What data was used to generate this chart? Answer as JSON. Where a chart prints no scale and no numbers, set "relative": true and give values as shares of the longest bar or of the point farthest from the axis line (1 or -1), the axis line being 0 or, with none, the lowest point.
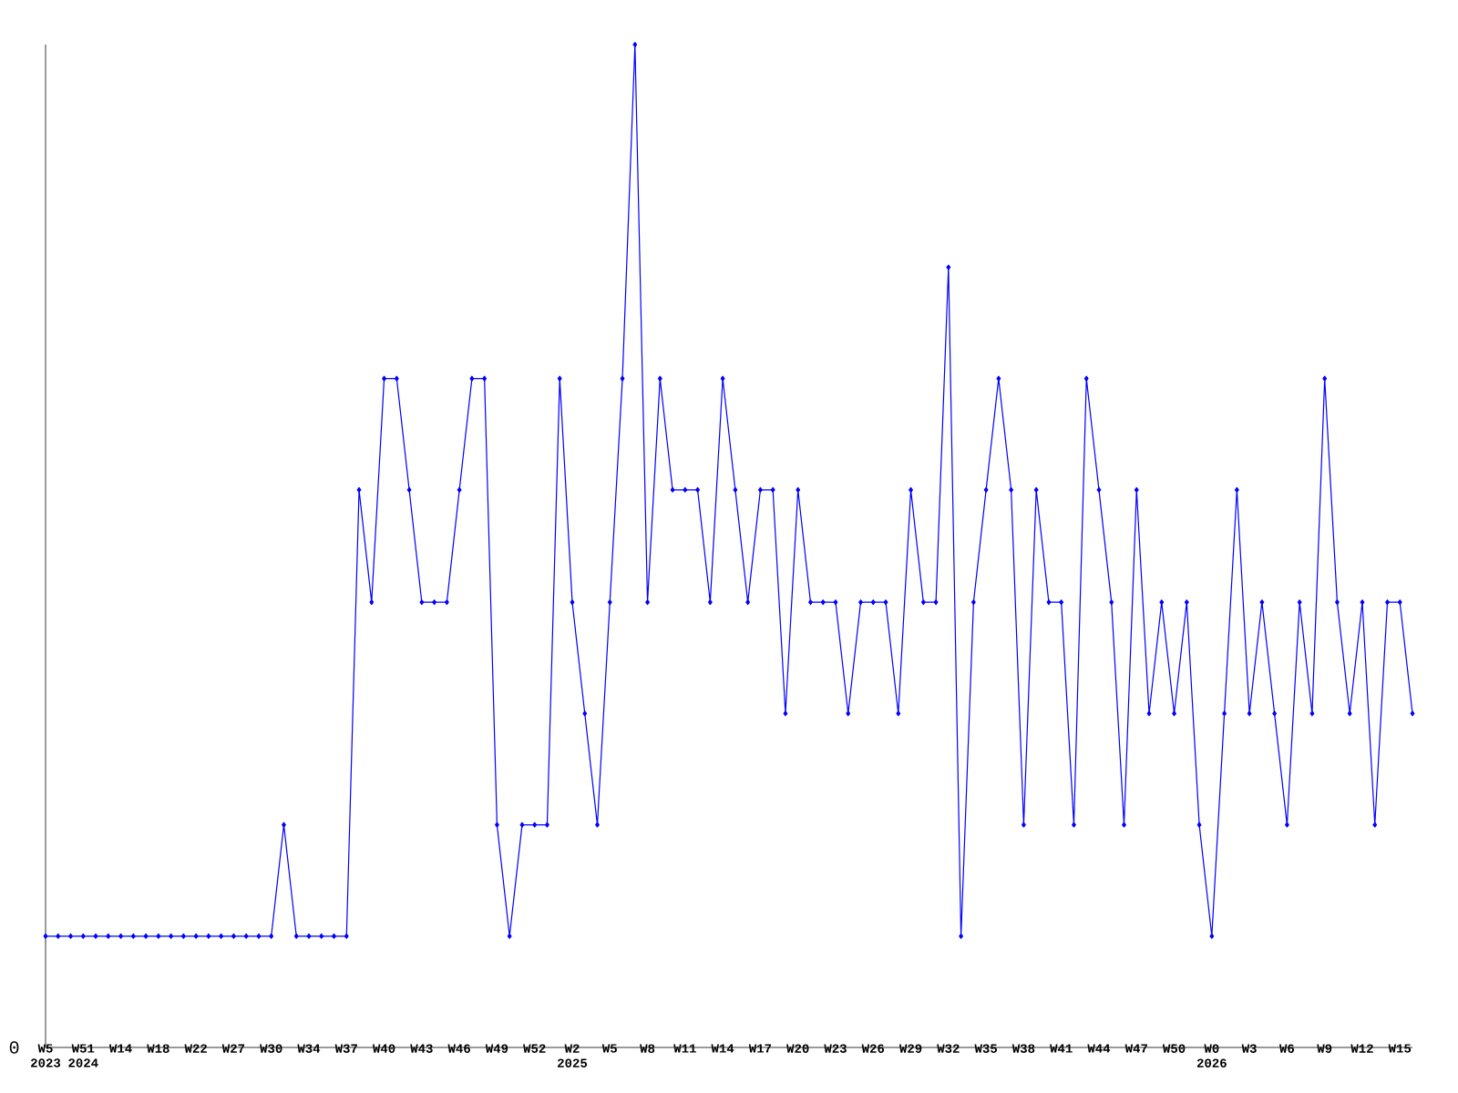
{
  "chart_data": {
    "type": "line",
    "relative": true,
    "color": "#0000ff",
    "marker": "diamond",
    "line_style": "solid",
    "grid": false,
    "categories": [
      "W5 2023",
      null,
      null,
      "W51 2024",
      null,
      null,
      "W14",
      null,
      null,
      "W18",
      null,
      null,
      "W22",
      null,
      null,
      "W27",
      null,
      null,
      "W30",
      null,
      null,
      "W34",
      null,
      null,
      "W37",
      null,
      null,
      "W40",
      null,
      null,
      "W43",
      null,
      null,
      "W46",
      null,
      null,
      "W49",
      null,
      null,
      "W52",
      null,
      null,
      "W2 2025",
      null,
      null,
      "W5",
      null,
      null,
      "W8",
      null,
      null,
      "W11",
      null,
      null,
      "W14",
      null,
      null,
      "W17",
      null,
      null,
      "W20",
      null,
      null,
      "W23",
      null,
      null,
      "W26",
      null,
      null,
      "W29",
      null,
      null,
      "W32",
      null,
      null,
      "W35",
      null,
      null,
      "W38",
      null,
      null,
      "W41",
      null,
      null,
      "W44",
      null,
      null,
      "W47",
      null,
      null,
      "W50",
      null,
      null,
      "W0 2026",
      null,
      null,
      "W3",
      null,
      null,
      "W6",
      null,
      null,
      "W9",
      null,
      null,
      "W12",
      null,
      null,
      "W15",
      null
    ],
    "values": [
      0.111,
      0.111,
      0.111,
      0.111,
      0.111,
      0.111,
      0.111,
      0.111,
      0.111,
      0.111,
      0.111,
      0.111,
      0.111,
      0.111,
      0.111,
      0.111,
      0.111,
      0.111,
      0.111,
      0.222,
      0.111,
      0.111,
      0.111,
      0.111,
      0.111,
      0.556,
      0.444,
      0.667,
      0.667,
      0.556,
      0.444,
      0.444,
      0.444,
      0.556,
      0.667,
      0.667,
      0.222,
      0.111,
      0.222,
      0.222,
      0.222,
      0.667,
      0.444,
      0.333,
      0.222,
      0.444,
      0.667,
      1,
      0.444,
      0.667,
      0.556,
      0.556,
      0.556,
      0.444,
      0.667,
      0.556,
      0.444,
      0.556,
      0.556,
      0.333,
      0.556,
      0.444,
      0.444,
      0.444,
      0.333,
      0.444,
      0.444,
      0.444,
      0.333,
      0.556,
      0.444,
      0.444,
      0.778,
      0.111,
      0.444,
      0.556,
      0.667,
      0.556,
      0.222,
      0.556,
      0.444,
      0.444,
      0.222,
      0.667,
      0.556,
      0.444,
      0.222,
      0.556,
      0.333,
      0.444,
      0.333,
      0.444,
      0.222,
      0.111,
      0.333,
      0.556,
      0.333,
      0.444,
      0.333,
      0.222,
      0.444,
      0.333,
      0.667,
      0.444,
      0.333,
      0.444,
      0.222,
      0.444,
      0.444,
      0.333
    ],
    "annotations": [
      "0"
    ]
  }
}
